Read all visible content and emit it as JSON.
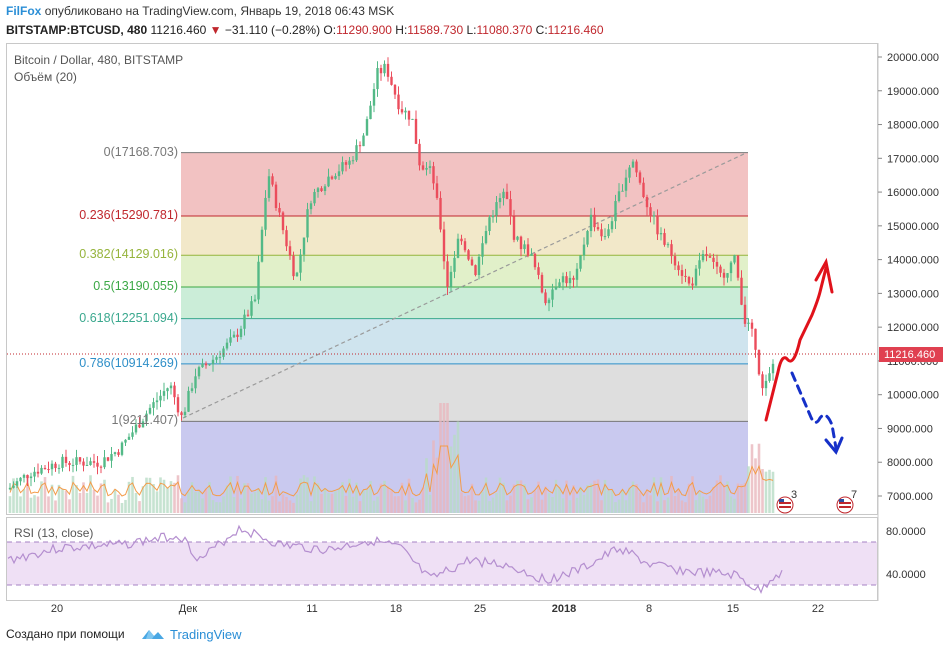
{
  "header": {
    "brand": "FilFox",
    "published": "опубликовано на TradingView.com, Январь 19, 2018 06:43 MSK",
    "symbol": "BITSTAMP:BTCUSD, 480",
    "last": "11216.460",
    "change": "−31.110 (−0.28%)",
    "o_label": "O:",
    "o_val": "11290.900",
    "h_label": "H:",
    "h_val": "11589.730",
    "l_label": "L:",
    "l_val": "11080.370",
    "c_label": "C:",
    "c_val": "11216.460"
  },
  "legend": {
    "title": "Bitcoin / Dollar, 480, BITSTAMP",
    "volume": "Объём (20)",
    "rsi": "RSI (13, close)"
  },
  "fib": [
    {
      "label": "0(17168.703)",
      "price": 17168.703,
      "color": "#777777",
      "fill": "#f2c2c2"
    },
    {
      "label": "0.236(15290.781)",
      "price": 15290.781,
      "color": "#c0272d",
      "fill": "#f2e8c9"
    },
    {
      "label": "0.382(14129.016)",
      "price": 14129.016,
      "color": "#96b43c",
      "fill": "#e1f0c9"
    },
    {
      "label": "0.5(13190.055)",
      "price": 13190.055,
      "color": "#3aa845",
      "fill": "#cbedd8"
    },
    {
      "label": "0.618(12251.094)",
      "price": 12251.094,
      "color": "#3aa88e",
      "fill": "#cfe4ee"
    },
    {
      "label": "0.786(10914.269)",
      "price": 10914.269,
      "color": "#2f8fc8",
      "fill": "#dedede"
    },
    {
      "label": "1(9211.407)",
      "price": 9211.407,
      "color": "#777777",
      "fill": "#c9c9ef"
    }
  ],
  "price_axis": [
    "20000.000",
    "19000.000",
    "18000.000",
    "17000.000",
    "16000.000",
    "15000.000",
    "14000.000",
    "13000.000",
    "12000.000",
    "11000.000",
    "10000.000",
    "9000.000",
    "8000.000",
    "7000.000"
  ],
  "current_price_badge": "11216.460",
  "rsi_axis": [
    "80.0000",
    "40.0000"
  ],
  "time_axis": [
    "20",
    "Дек",
    "11",
    "18",
    "25",
    "2018",
    "8",
    "15",
    "22"
  ],
  "markers": {
    "event1_count": "3",
    "event2_count": "7"
  },
  "footer": {
    "made_with": "Создано при помощи",
    "tv": "TradingView"
  },
  "colors": {
    "up": "#53b987",
    "down": "#eb4d5c",
    "forecast_up": "#e0121b",
    "forecast_down": "#1530c8",
    "accent": "#2a8ed6"
  },
  "icons": [
    "tradingview-logo-icon",
    "us-flag-event-icon"
  ]
}
